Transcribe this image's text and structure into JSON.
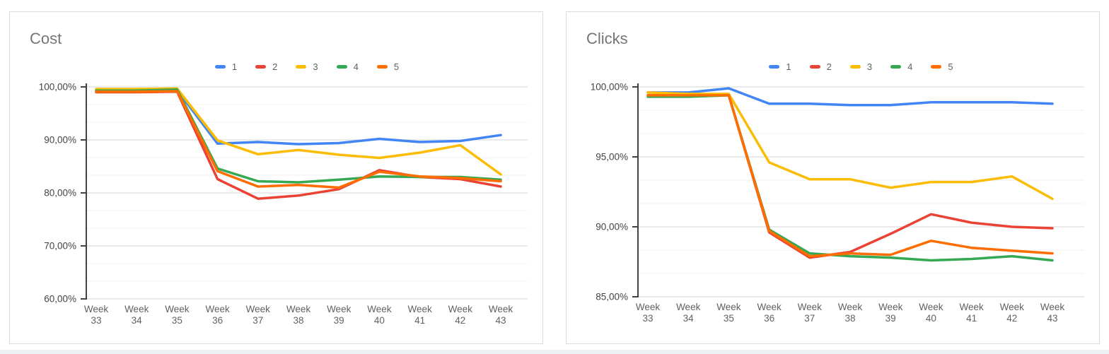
{
  "chart_data": [
    {
      "type": "line",
      "title": "Cost",
      "legend_position": "top",
      "grid": true,
      "x_tick_word": "Week",
      "x_tick_numbers": [
        "33",
        "34",
        "35",
        "36",
        "37",
        "38",
        "39",
        "40",
        "41",
        "42",
        "43"
      ],
      "categories": [
        "Week 33",
        "Week 34",
        "Week 35",
        "Week 36",
        "Week 37",
        "Week 38",
        "Week 39",
        "Week 40",
        "Week 41",
        "Week 42",
        "Week 43"
      ],
      "ylabel": "",
      "xlabel": "",
      "ylim": [
        60,
        100
      ],
      "y_minor_divisions": 3,
      "y_ticks": [
        {
          "value": 100,
          "label": "100,00%"
        },
        {
          "value": 90,
          "label": "90,00%"
        },
        {
          "value": 80,
          "label": "80,00%"
        },
        {
          "value": 70,
          "label": "70,00%"
        },
        {
          "value": 60,
          "label": "60,00%"
        }
      ],
      "series": [
        {
          "name": "1",
          "color": "#4285F4",
          "values": [
            99.2,
            99.2,
            99.4,
            89.3,
            89.6,
            89.2,
            89.4,
            90.2,
            89.6,
            89.8,
            90.9
          ]
        },
        {
          "name": "2",
          "color": "#EA4335",
          "values": [
            99.0,
            99.0,
            99.1,
            82.6,
            78.9,
            79.5,
            80.7,
            84.3,
            83.0,
            82.6,
            81.2
          ]
        },
        {
          "name": "3",
          "color": "#FBBC04",
          "values": [
            99.6,
            99.6,
            99.7,
            89.9,
            87.3,
            88.1,
            87.2,
            86.6,
            87.6,
            89.0,
            83.5
          ]
        },
        {
          "name": "4",
          "color": "#34A853",
          "values": [
            99.3,
            99.3,
            99.5,
            84.6,
            82.2,
            82.0,
            82.5,
            83.1,
            83.0,
            83.0,
            82.5
          ]
        },
        {
          "name": "5",
          "color": "#FF6D01",
          "values": [
            99.1,
            99.1,
            99.2,
            84.1,
            81.2,
            81.5,
            81.0,
            84.0,
            83.1,
            82.8,
            82.2
          ]
        }
      ]
    },
    {
      "type": "line",
      "title": "Clicks",
      "legend_position": "top",
      "grid": true,
      "x_tick_word": "Week",
      "x_tick_numbers": [
        "33",
        "34",
        "35",
        "36",
        "37",
        "38",
        "39",
        "40",
        "41",
        "42",
        "43"
      ],
      "categories": [
        "Week 33",
        "Week 34",
        "Week 35",
        "Week 36",
        "Week 37",
        "Week 38",
        "Week 39",
        "Week 40",
        "Week 41",
        "Week 42",
        "Week 43"
      ],
      "ylabel": "",
      "xlabel": "",
      "ylim": [
        85,
        100
      ],
      "y_minor_divisions": 3,
      "y_ticks": [
        {
          "value": 100,
          "label": "100,00%"
        },
        {
          "value": 95,
          "label": "95,00%"
        },
        {
          "value": 90,
          "label": "90,00%"
        },
        {
          "value": 85,
          "label": "85,00%"
        }
      ],
      "series": [
        {
          "name": "1",
          "color": "#4285F4",
          "values": [
            99.6,
            99.6,
            99.9,
            98.8,
            98.8,
            98.7,
            98.7,
            98.9,
            98.9,
            98.9,
            98.8
          ]
        },
        {
          "name": "2",
          "color": "#EA4335",
          "values": [
            99.4,
            99.4,
            99.4,
            89.6,
            87.8,
            88.2,
            89.5,
            90.9,
            90.3,
            90.0,
            89.9
          ]
        },
        {
          "name": "3",
          "color": "#FBBC04",
          "values": [
            99.6,
            99.5,
            99.5,
            94.6,
            93.4,
            93.4,
            92.8,
            93.2,
            93.2,
            93.6,
            92.0
          ]
        },
        {
          "name": "4",
          "color": "#34A853",
          "values": [
            99.3,
            99.3,
            99.4,
            89.8,
            88.1,
            87.9,
            87.8,
            87.6,
            87.7,
            87.9,
            87.6
          ]
        },
        {
          "name": "5",
          "color": "#FF6D01",
          "values": [
            99.4,
            99.4,
            99.4,
            89.7,
            87.9,
            88.1,
            88.0,
            89.0,
            88.5,
            88.3,
            88.1
          ]
        }
      ]
    }
  ],
  "style_colors": {
    "card_border": "#dadce0",
    "title_text": "#757575",
    "axis_line": "#424242",
    "y_label_text": "#444444",
    "x_label_text": "#616161",
    "major_grid": "#d6d6d6",
    "minor_grid": "#f0f0f0"
  }
}
